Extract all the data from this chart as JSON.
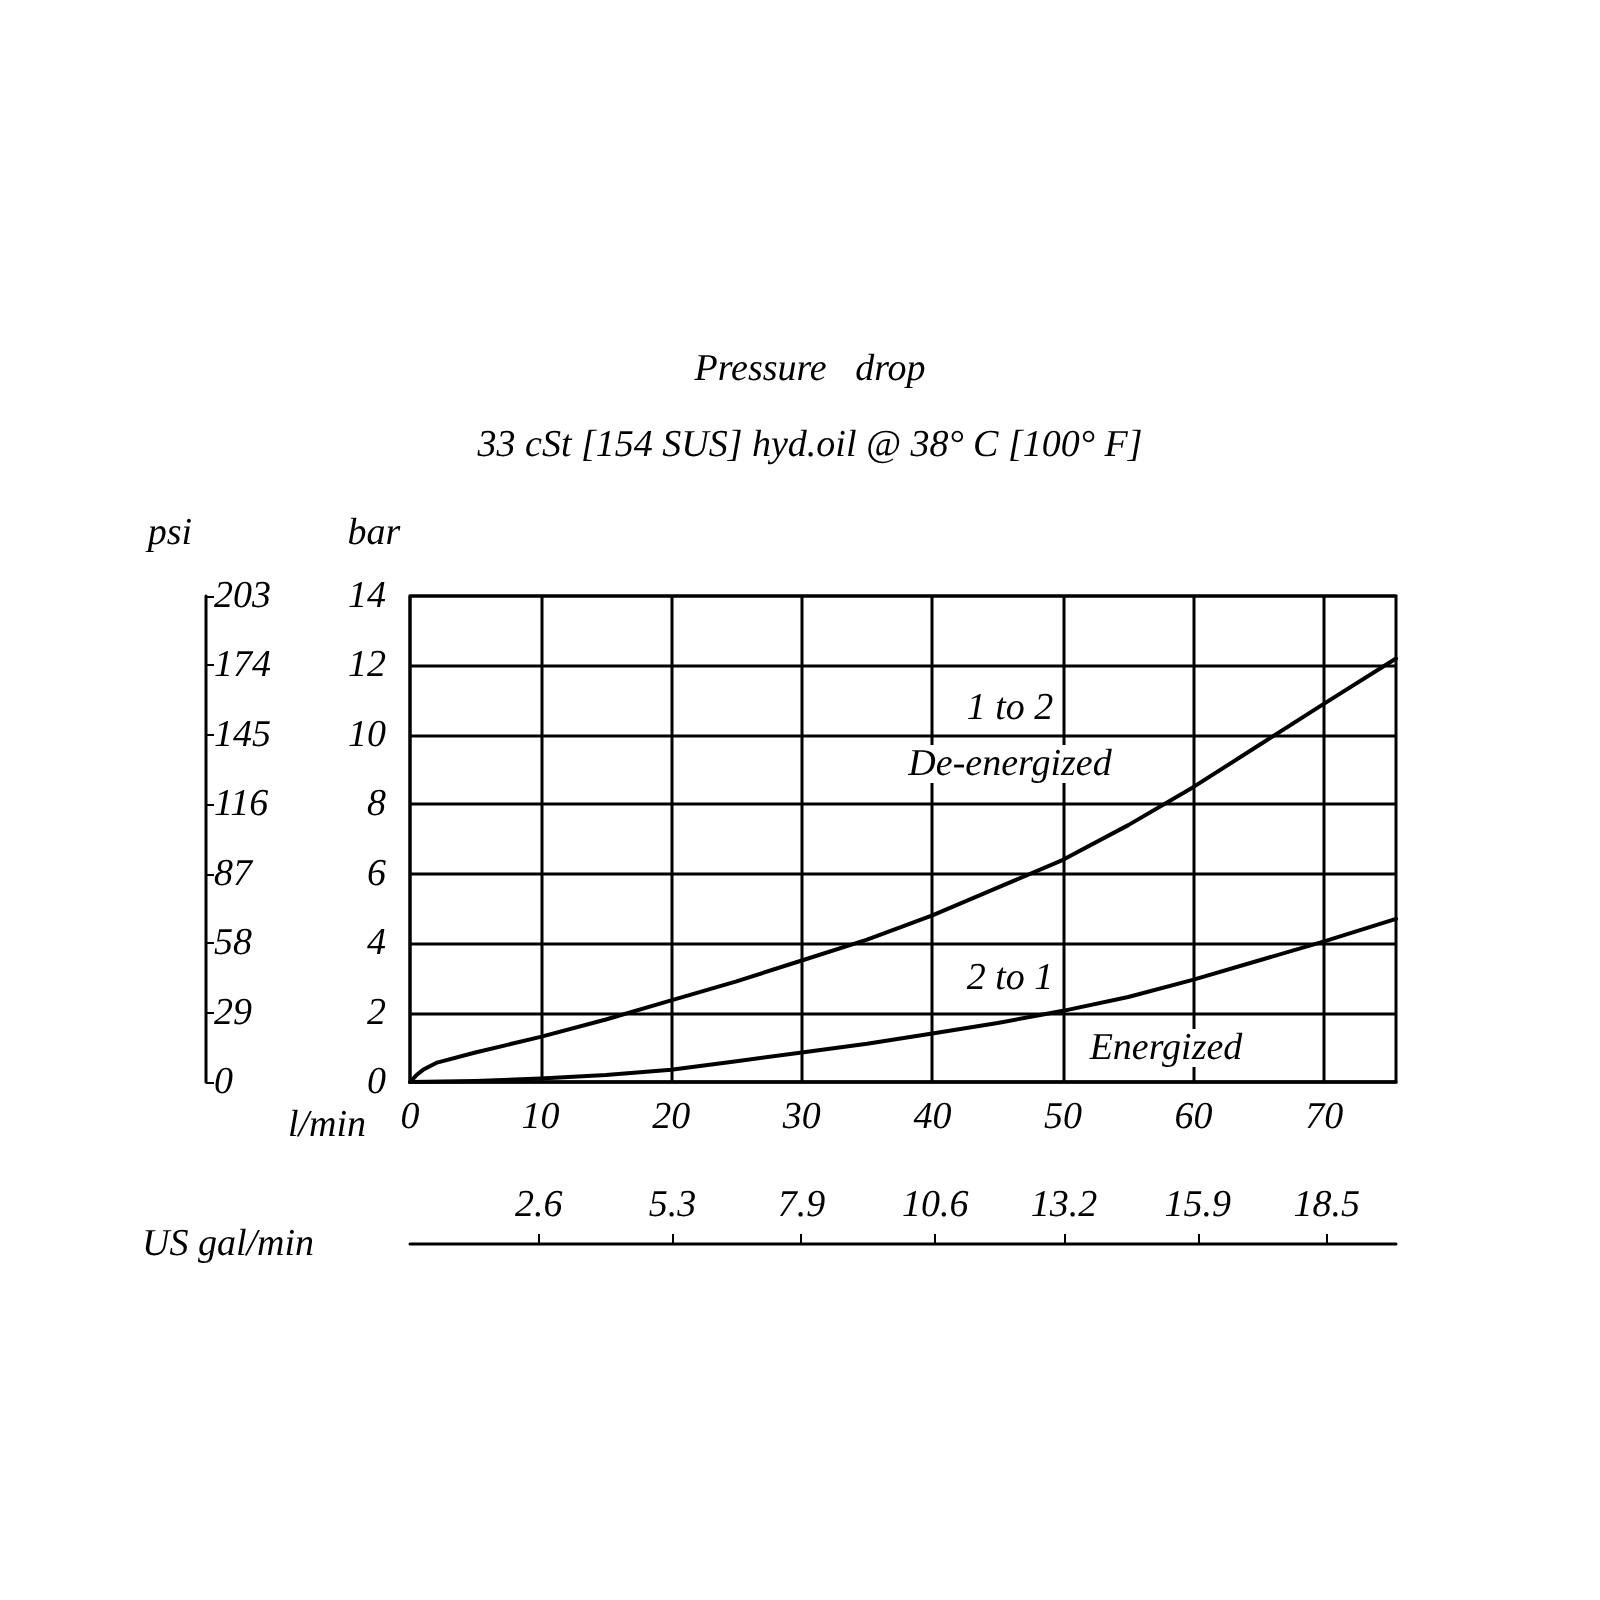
{
  "chart_data": {
    "type": "line",
    "title": "Pressure   drop",
    "subtitle": "33 cSt [154 SUS] hyd.oil @ 38° C [100° F]",
    "xlabel": "l/min",
    "ylabel": "bar",
    "y2label": "psi",
    "x2label": "US gal/min",
    "xlim": [
      0,
      75.5
    ],
    "xticks": [
      0,
      10,
      20,
      30,
      40,
      50,
      60,
      70
    ],
    "ylim": [
      0,
      14
    ],
    "yticks": [
      0,
      2,
      4,
      6,
      8,
      10,
      12,
      14
    ],
    "y2lim": [
      0,
      203
    ],
    "y2ticks": [
      0,
      29,
      58,
      87,
      116,
      145,
      174,
      203
    ],
    "x2lim": [
      0,
      19.9
    ],
    "x2ticks": [
      2.6,
      5.3,
      7.9,
      10.6,
      13.2,
      15.9,
      18.5
    ],
    "grid": true,
    "marker": "none",
    "line_style": "solid",
    "series": [
      {
        "color": "#000000",
        "x": [
          0,
          0.5,
          1,
          2,
          5,
          10,
          15,
          20,
          25,
          30,
          35,
          40,
          45,
          50,
          55,
          60,
          65,
          70,
          75.5
        ],
        "values": [
          0,
          0.2,
          0.35,
          0.55,
          0.85,
          1.3,
          1.8,
          2.35,
          2.9,
          3.5,
          4.1,
          4.8,
          5.6,
          6.4,
          7.4,
          8.5,
          9.7,
          10.9,
          12.2
        ]
      },
      {
        "color": "#000000",
        "x": [
          0,
          5,
          10,
          15,
          20,
          25,
          30,
          35,
          40,
          45,
          50,
          55,
          60,
          65,
          70,
          75.5
        ],
        "values": [
          0,
          0.03,
          0.1,
          0.2,
          0.35,
          0.6,
          0.85,
          1.1,
          1.4,
          1.7,
          2.05,
          2.45,
          2.95,
          3.5,
          4.05,
          4.7
        ]
      }
    ],
    "annotations": [
      "1 to 2",
      "De-energized",
      "2 to 1",
      "Energized"
    ]
  }
}
